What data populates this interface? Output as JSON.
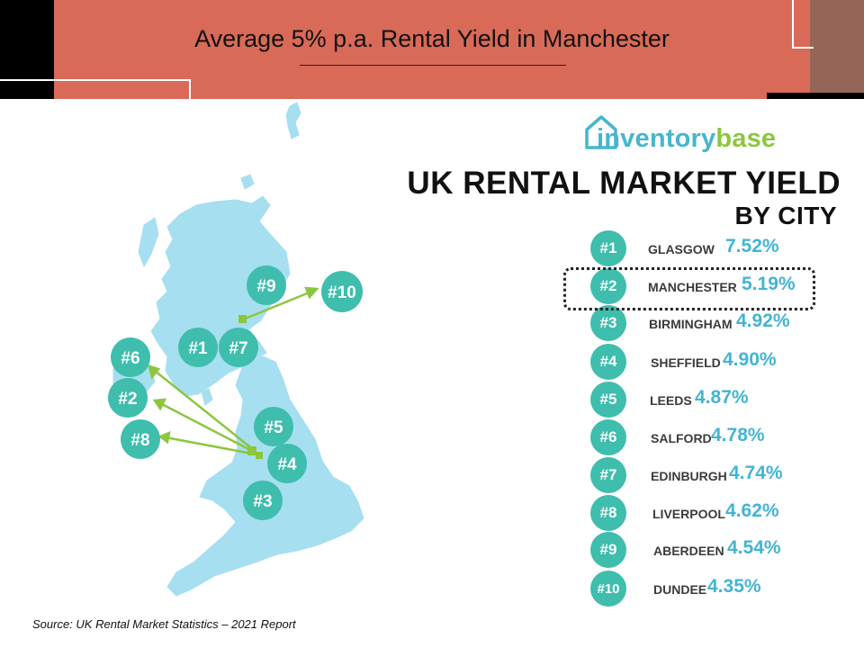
{
  "slide": {
    "title": "Average 5% p.a.  Rental Yield in Manchester",
    "source": "Source: UK Rental Market Statistics – 2021 Report"
  },
  "logo": {
    "text_part1": "inventory",
    "text_part2": "base",
    "colors": {
      "primary": "#45b6ce",
      "secondary": "#8cc63f"
    }
  },
  "infographic": {
    "title": "UK RENTAL MARKET YIELD",
    "subtitle": "BY CITY",
    "ranking": [
      {
        "rank": "#1",
        "city": "GLASGOW",
        "yield": "7.52%"
      },
      {
        "rank": "#2",
        "city": "MANCHESTER",
        "yield": "5.19%"
      },
      {
        "rank": "#3",
        "city": "BIRMINGHAM",
        "yield": "4.92%"
      },
      {
        "rank": "#4",
        "city": "SHEFFIELD",
        "yield": "4.90%"
      },
      {
        "rank": "#5",
        "city": "LEEDS",
        "yield": "4.87%"
      },
      {
        "rank": "#6",
        "city": "SALFORD",
        "yield": "4.78%"
      },
      {
        "rank": "#7",
        "city": "EDINBURGH",
        "yield": "4.74%"
      },
      {
        "rank": "#8",
        "city": "LIVERPOOL",
        "yield": "4.62%"
      },
      {
        "rank": "#9",
        "city": "ABERDEEN",
        "yield": "4.54%"
      },
      {
        "rank": "#10",
        "city": "DUNDEE",
        "yield": "4.35%"
      }
    ],
    "highlighted_rank": "#2"
  },
  "map": {
    "markers": [
      "#1",
      "#2",
      "#3",
      "#4",
      "#5",
      "#6",
      "#7",
      "#8",
      "#9",
      "#10"
    ]
  },
  "colors": {
    "header": "#d96a58",
    "badge": "#3fbdad",
    "percent": "#43b4d4",
    "map_land": "#a6dff0",
    "arrow": "#8cc63f"
  }
}
